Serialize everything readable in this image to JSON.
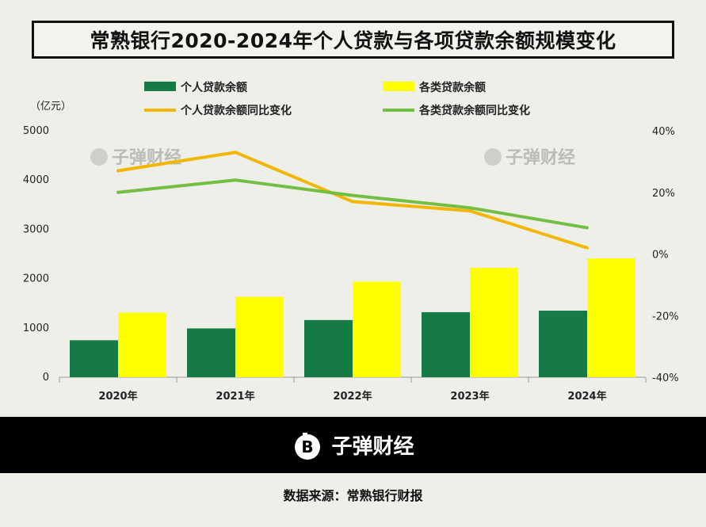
{
  "title": "常熟银行2020-2024年个人贷款与各项贷款余额规模变化",
  "chart_data": {
    "type": "bar",
    "categories": [
      "2020年",
      "2021年",
      "2022年",
      "2023年",
      "2024年"
    ],
    "bar_series": [
      {
        "name": "个人贷款余额",
        "color": "#157a45",
        "values": [
          750,
          990,
          1160,
          1320,
          1350
        ]
      },
      {
        "name": "各类贷款余额",
        "color": "#ffff00",
        "values": [
          1310,
          1630,
          1940,
          2220,
          2410
        ]
      }
    ],
    "line_series": [
      {
        "name": "个人贷款余额同比变化",
        "color": "#f2b705",
        "values": [
          27,
          33,
          17,
          14,
          2
        ]
      },
      {
        "name": "各类贷款余额同比变化",
        "color": "#74be43",
        "values": [
          20,
          24,
          19,
          15,
          8.5
        ]
      }
    ],
    "y_left": {
      "min": 0,
      "max": 5000,
      "ticks": [
        0,
        1000,
        2000,
        3000,
        4000,
        5000
      ],
      "unit_label": "（亿元）"
    },
    "y_right": {
      "min": -40,
      "max": 40,
      "ticks": [
        "-40%",
        "-20%",
        "0%",
        "20%",
        "40%"
      ]
    }
  },
  "watermark": "子弹财经",
  "footer": {
    "brand": "子弹财经"
  },
  "source": "数据来源：常熟银行财报"
}
